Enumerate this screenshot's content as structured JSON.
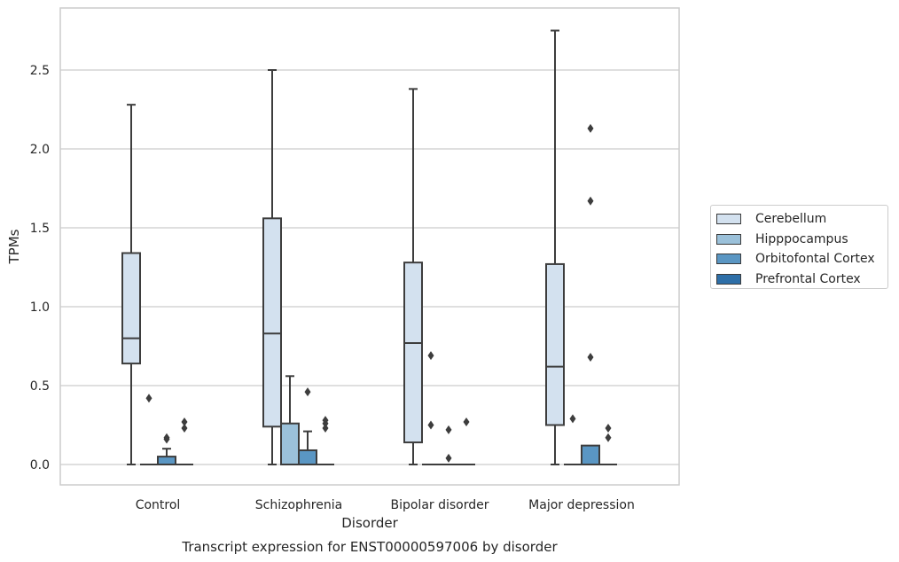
{
  "chart_data": {
    "type": "boxplot",
    "title": "",
    "caption": "Transcript expression for ENST00000597006 by disorder",
    "xlabel": "Disorder",
    "ylabel": "TPMs",
    "ylim": [
      -0.13,
      2.9
    ],
    "yticks": [
      0.0,
      0.5,
      1.0,
      1.5,
      2.0,
      2.5
    ],
    "ytick_labels": [
      "0.0",
      "0.5",
      "1.0",
      "1.5",
      "2.0",
      "2.5"
    ],
    "grid": "horizontal",
    "legend_position": "right",
    "categories": [
      "Control",
      "Schizophrenia",
      "Bipolar disorder",
      "Major depression"
    ],
    "series": [
      {
        "name": "Cerebellum",
        "color": "#d3e1ef",
        "boxes": [
          {
            "whisker_low": 0.0,
            "q1": 0.64,
            "median": 0.8,
            "q3": 1.34,
            "whisker_high": 2.28,
            "outliers": []
          },
          {
            "whisker_low": 0.0,
            "q1": 0.24,
            "median": 0.83,
            "q3": 1.56,
            "whisker_high": 2.5,
            "outliers": []
          },
          {
            "whisker_low": 0.0,
            "q1": 0.14,
            "median": 0.77,
            "q3": 1.28,
            "whisker_high": 2.38,
            "outliers": []
          },
          {
            "whisker_low": 0.0,
            "q1": 0.25,
            "median": 0.62,
            "q3": 1.27,
            "whisker_high": 2.75,
            "outliers": []
          }
        ]
      },
      {
        "name": "Hipppocampus",
        "color": "#9bc1da",
        "boxes": [
          {
            "whisker_low": 0.0,
            "q1": 0.0,
            "median": 0.0,
            "q3": 0.0,
            "whisker_high": 0.0,
            "outliers": [
              0.42
            ]
          },
          {
            "whisker_low": 0.0,
            "q1": 0.0,
            "median": 0.0,
            "q3": 0.26,
            "whisker_high": 0.56,
            "outliers": []
          },
          {
            "whisker_low": 0.0,
            "q1": 0.0,
            "median": 0.0,
            "q3": 0.0,
            "whisker_high": 0.0,
            "outliers": [
              0.69,
              0.25
            ]
          },
          {
            "whisker_low": 0.0,
            "q1": 0.0,
            "median": 0.0,
            "q3": 0.0,
            "whisker_high": 0.0,
            "outliers": [
              0.29
            ]
          }
        ]
      },
      {
        "name": "Orbitofontal Cortex",
        "color": "#5a96c3",
        "boxes": [
          {
            "whisker_low": 0.0,
            "q1": 0.0,
            "median": 0.0,
            "q3": 0.05,
            "whisker_high": 0.1,
            "outliers": [
              0.17,
              0.16
            ]
          },
          {
            "whisker_low": 0.0,
            "q1": 0.0,
            "median": 0.0,
            "q3": 0.09,
            "whisker_high": 0.21,
            "outliers": [
              0.46
            ]
          },
          {
            "whisker_low": 0.0,
            "q1": 0.0,
            "median": 0.0,
            "q3": 0.0,
            "whisker_high": 0.0,
            "outliers": [
              0.22,
              0.04
            ]
          },
          {
            "whisker_low": 0.0,
            "q1": 0.0,
            "median": 0.0,
            "q3": 0.12,
            "whisker_high": 0.12,
            "outliers": [
              2.13,
              1.67,
              0.68
            ]
          }
        ]
      },
      {
        "name": "Prefrontal Cortex",
        "color": "#2e6fa8",
        "boxes": [
          {
            "whisker_low": 0.0,
            "q1": 0.0,
            "median": 0.0,
            "q3": 0.0,
            "whisker_high": 0.0,
            "outliers": [
              0.27,
              0.23
            ]
          },
          {
            "whisker_low": 0.0,
            "q1": 0.0,
            "median": 0.0,
            "q3": 0.0,
            "whisker_high": 0.0,
            "outliers": [
              0.28,
              0.26,
              0.23
            ]
          },
          {
            "whisker_low": 0.0,
            "q1": 0.0,
            "median": 0.0,
            "q3": 0.0,
            "whisker_high": 0.0,
            "outliers": [
              0.27
            ]
          },
          {
            "whisker_low": 0.0,
            "q1": 0.0,
            "median": 0.0,
            "q3": 0.0,
            "whisker_high": 0.0,
            "outliers": [
              0.23,
              0.17
            ]
          }
        ]
      }
    ]
  }
}
